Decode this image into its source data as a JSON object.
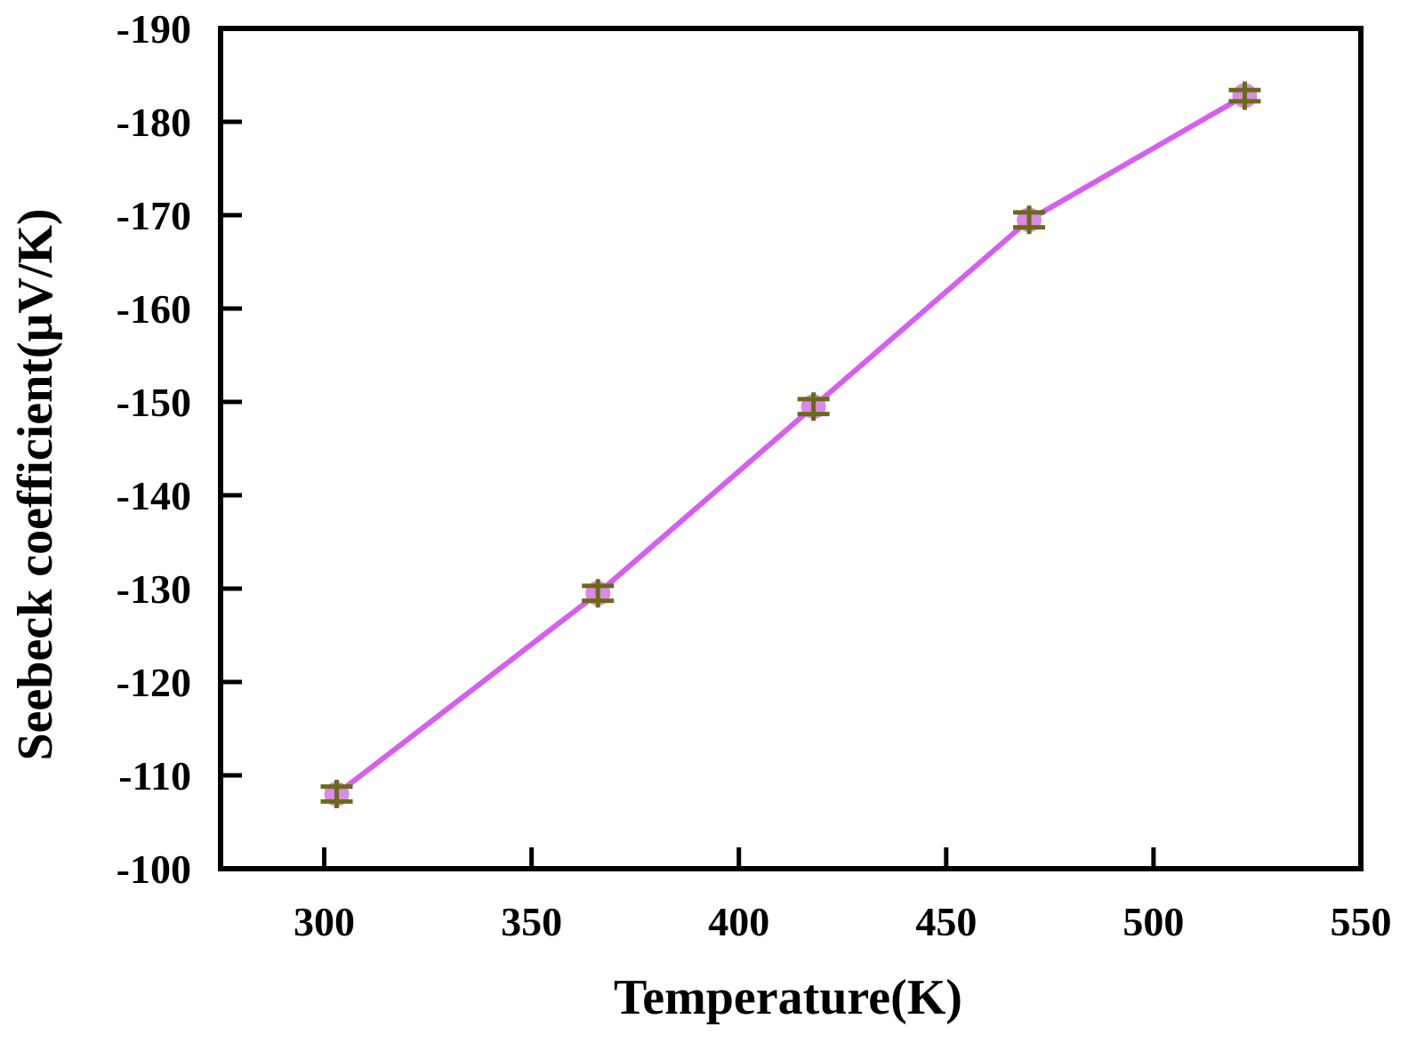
{
  "chart_data": {
    "type": "line",
    "title": "",
    "xlabel": "Temperature(K)",
    "ylabel": "Seebeck coefficient(μV/K)",
    "xlim": [
      275,
      550
    ],
    "ylim": [
      -100,
      -190
    ],
    "x_ticks": [
      300,
      350,
      400,
      450,
      500,
      550
    ],
    "y_ticks": [
      -100,
      -110,
      -120,
      -130,
      -140,
      -150,
      -160,
      -170,
      -180,
      -190
    ],
    "x_tick_labels": [
      "300",
      "350",
      "400",
      "450",
      "500",
      "550"
    ],
    "y_tick_labels": [
      "-100",
      "-110",
      "-120",
      "-130",
      "-140",
      "-150",
      "-160",
      "-170",
      "-180",
      "-190"
    ],
    "grid": false,
    "series": [
      {
        "name": "Seebeck coefficient",
        "x": [
          303,
          366,
          418,
          470,
          522
        ],
        "y": [
          -108,
          -129.5,
          -149.5,
          -169.5,
          -182.8
        ],
        "line_color": "#d65ef0",
        "marker_color": "#d98ae6",
        "error_color": "#6b6a18",
        "error": [
          0.8,
          0.8,
          0.8,
          0.8,
          0.6
        ]
      }
    ]
  }
}
